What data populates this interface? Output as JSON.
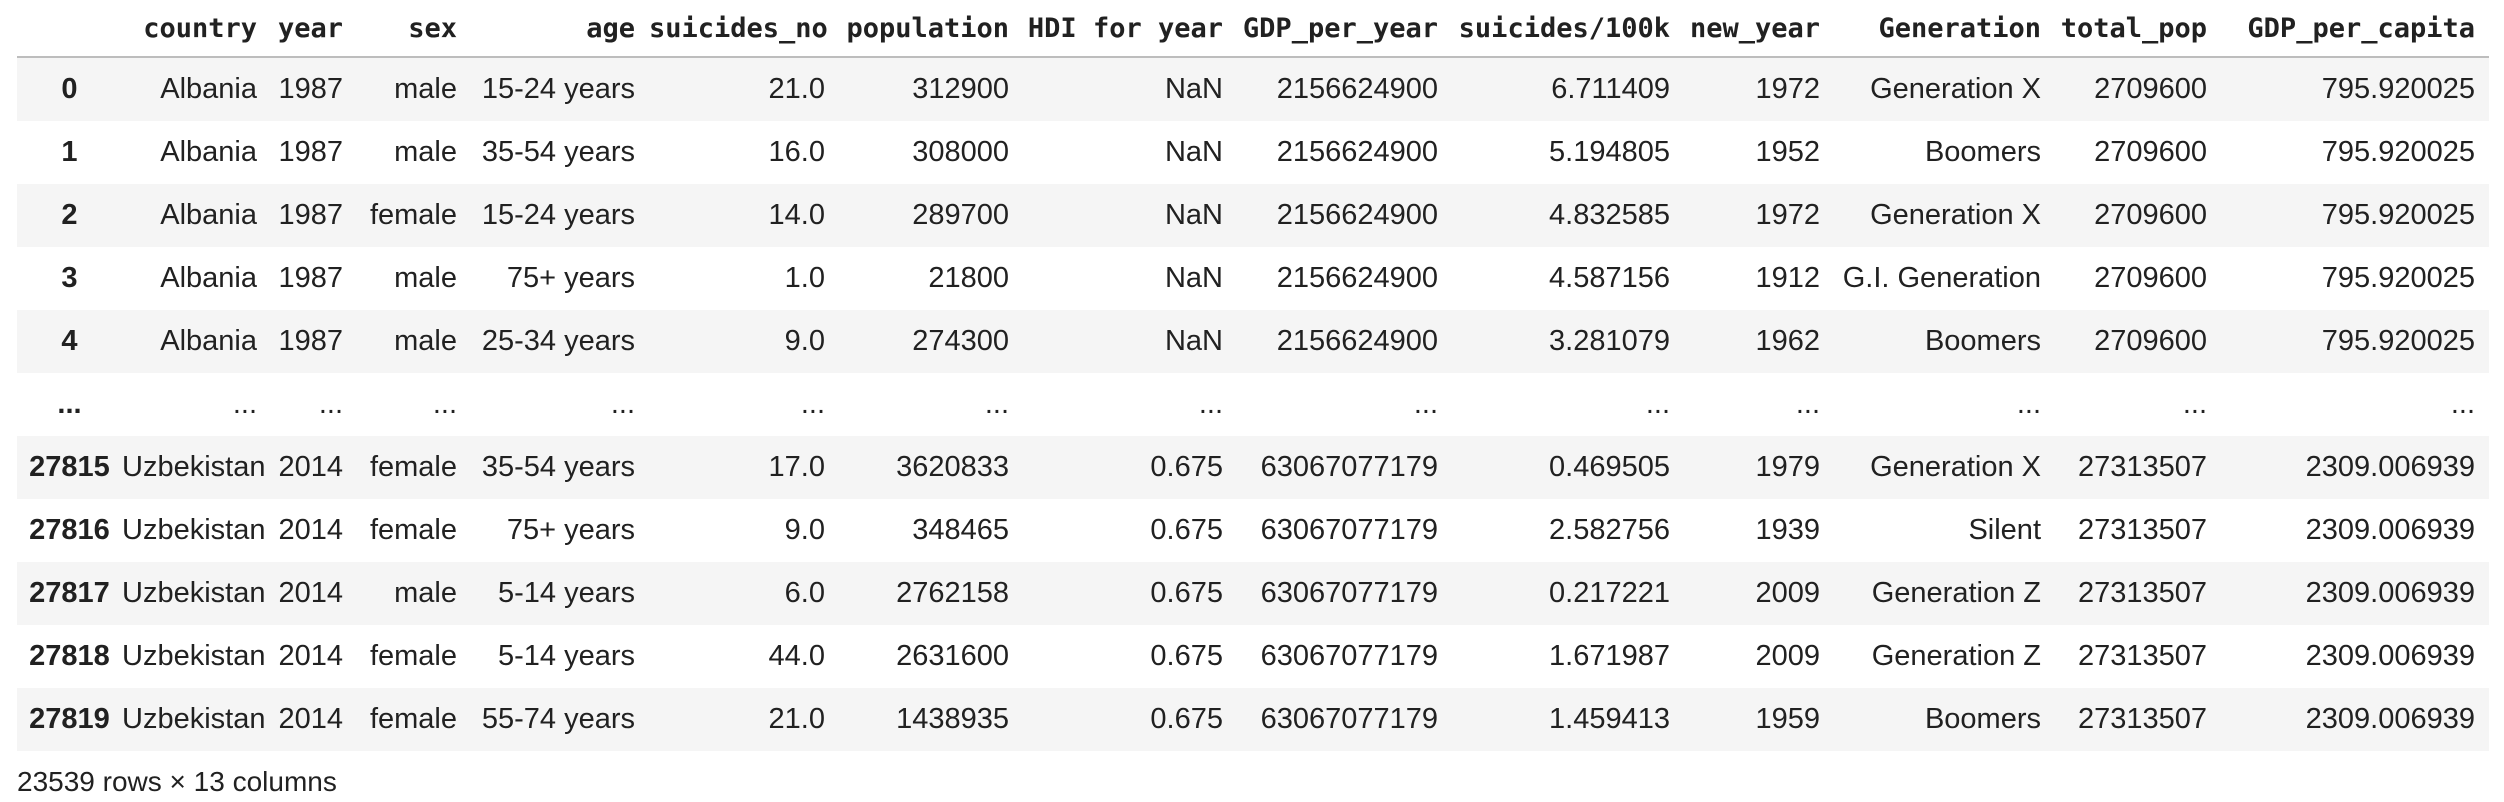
{
  "table": {
    "columns": [
      "country",
      "year",
      "sex",
      "age",
      "suicides_no",
      "population",
      "HDI for year",
      "GDP_per_year",
      "suicides/100k",
      "new_year",
      "Generation",
      "total_pop",
      "GDP_per_capita"
    ],
    "rows": [
      {
        "index": "0",
        "cells": [
          "Albania",
          "1987",
          "male",
          "15-24 years",
          "21.0",
          "312900",
          "NaN",
          "2156624900",
          "6.711409",
          "1972",
          "Generation X",
          "2709600",
          "795.920025"
        ]
      },
      {
        "index": "1",
        "cells": [
          "Albania",
          "1987",
          "male",
          "35-54 years",
          "16.0",
          "308000",
          "NaN",
          "2156624900",
          "5.194805",
          "1952",
          "Boomers",
          "2709600",
          "795.920025"
        ]
      },
      {
        "index": "2",
        "cells": [
          "Albania",
          "1987",
          "female",
          "15-24 years",
          "14.0",
          "289700",
          "NaN",
          "2156624900",
          "4.832585",
          "1972",
          "Generation X",
          "2709600",
          "795.920025"
        ]
      },
      {
        "index": "3",
        "cells": [
          "Albania",
          "1987",
          "male",
          "75+ years",
          "1.0",
          "21800",
          "NaN",
          "2156624900",
          "4.587156",
          "1912",
          "G.I. Generation",
          "2709600",
          "795.920025"
        ]
      },
      {
        "index": "4",
        "cells": [
          "Albania",
          "1987",
          "male",
          "25-34 years",
          "9.0",
          "274300",
          "NaN",
          "2156624900",
          "3.281079",
          "1962",
          "Boomers",
          "2709600",
          "795.920025"
        ]
      },
      {
        "index": "...",
        "cells": [
          "...",
          "...",
          "...",
          "...",
          "...",
          "...",
          "...",
          "...",
          "...",
          "...",
          "...",
          "...",
          "..."
        ]
      },
      {
        "index": "27815",
        "cells": [
          "Uzbekistan",
          "2014",
          "female",
          "35-54 years",
          "17.0",
          "3620833",
          "0.675",
          "63067077179",
          "0.469505",
          "1979",
          "Generation X",
          "27313507",
          "2309.006939"
        ]
      },
      {
        "index": "27816",
        "cells": [
          "Uzbekistan",
          "2014",
          "female",
          "75+ years",
          "9.0",
          "348465",
          "0.675",
          "63067077179",
          "2.582756",
          "1939",
          "Silent",
          "27313507",
          "2309.006939"
        ]
      },
      {
        "index": "27817",
        "cells": [
          "Uzbekistan",
          "2014",
          "male",
          "5-14 years",
          "6.0",
          "2762158",
          "0.675",
          "63067077179",
          "0.217221",
          "2009",
          "Generation Z",
          "27313507",
          "2309.006939"
        ]
      },
      {
        "index": "27818",
        "cells": [
          "Uzbekistan",
          "2014",
          "female",
          "5-14 years",
          "44.0",
          "2631600",
          "0.675",
          "63067077179",
          "1.671987",
          "2009",
          "Generation Z",
          "27313507",
          "2309.006939"
        ]
      },
      {
        "index": "27819",
        "cells": [
          "Uzbekistan",
          "2014",
          "female",
          "55-74 years",
          "21.0",
          "1438935",
          "0.675",
          "63067077179",
          "1.459413",
          "1959",
          "Boomers",
          "27313507",
          "2309.006939"
        ]
      }
    ]
  },
  "footer": {
    "shape_text": "23539 rows × 13 columns"
  }
}
